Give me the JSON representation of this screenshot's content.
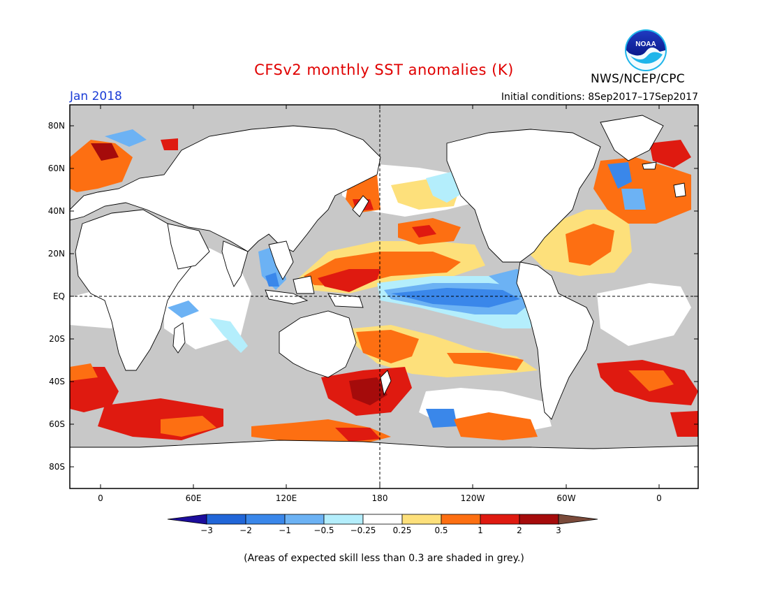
{
  "header": {
    "title": "CFSv2 monthly SST anomalies (K)",
    "valid_month": "Jan 2018",
    "initial_conditions": "Initial conditions: 8Sep2017–17Sep2017",
    "agency": "NWS/NCEP/CPC",
    "logo_text": "NOAA"
  },
  "map": {
    "projection": "equirectangular",
    "land_color": "#ffffff",
    "low_skill_color": "#c8c8c8",
    "y_ticks": [
      "80N",
      "60N",
      "40N",
      "20N",
      "EQ",
      "20S",
      "40S",
      "60S",
      "80S"
    ],
    "x_ticks": [
      "0",
      "60E",
      "120E",
      "180",
      "120W",
      "60W",
      "0"
    ]
  },
  "colorbar": {
    "labels": [
      "−3",
      "−2",
      "−1",
      "−0.5",
      "−0.25",
      "0.25",
      "0.5",
      "1",
      "2",
      "3"
    ],
    "colors": [
      "#1c0d9c",
      "#2166d8",
      "#3a87ea",
      "#6cb2f4",
      "#b4eefc",
      "#ffffff",
      "#fde07b",
      "#fd6f12",
      "#df1a10",
      "#a50b0b",
      "#7a4a3a"
    ]
  },
  "footnote": "(Areas of expected skill less than 0.3 are shaded in grey.)"
}
